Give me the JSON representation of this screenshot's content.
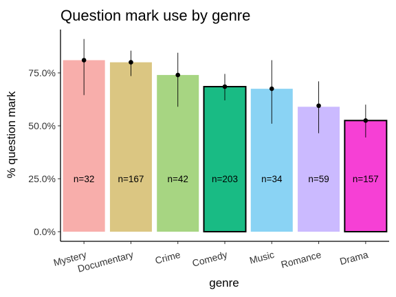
{
  "chart_data": {
    "type": "bar",
    "title": "Question mark use by genre",
    "xlabel": "genre",
    "ylabel": "% question mark",
    "ylim": [
      0,
      1
    ],
    "y_ticks": [
      {
        "value": 0.0,
        "label": "0.0%"
      },
      {
        "value": 0.25,
        "label": "25.0%"
      },
      {
        "value": 0.5,
        "label": "50.0%"
      },
      {
        "value": 0.75,
        "label": "75.0%"
      }
    ],
    "grid": false,
    "legend": "none",
    "error_bars": "vertical interval with point estimate",
    "categories": [
      {
        "name": "Mystery",
        "value": 0.81,
        "point": 0.81,
        "err_low": 0.645,
        "err_high": 0.91,
        "n_label": "n=32",
        "color": "#f8aeab",
        "outlined": false
      },
      {
        "name": "Documentary",
        "value": 0.8,
        "point": 0.8,
        "err_low": 0.735,
        "err_high": 0.855,
        "n_label": "n=167",
        "color": "#dbc682",
        "outlined": false
      },
      {
        "name": "Crime",
        "value": 0.74,
        "point": 0.74,
        "err_low": 0.59,
        "err_high": 0.845,
        "n_label": "n=42",
        "color": "#a7d582",
        "outlined": false
      },
      {
        "name": "Comedy",
        "value": 0.685,
        "point": 0.685,
        "err_low": 0.62,
        "err_high": 0.745,
        "n_label": "n=203",
        "color": "#19bb84",
        "outlined": true
      },
      {
        "name": "Music",
        "value": 0.675,
        "point": 0.675,
        "err_low": 0.51,
        "err_high": 0.81,
        "n_label": "n=34",
        "color": "#8ad3f4",
        "outlined": false
      },
      {
        "name": "Romance",
        "value": 0.59,
        "point": 0.595,
        "err_low": 0.465,
        "err_high": 0.71,
        "n_label": "n=59",
        "color": "#cbbaff",
        "outlined": false
      },
      {
        "name": "Drama",
        "value": 0.525,
        "point": 0.525,
        "err_low": 0.445,
        "err_high": 0.6,
        "n_label": "n=157",
        "color": "#f640d5",
        "outlined": true
      }
    ]
  }
}
